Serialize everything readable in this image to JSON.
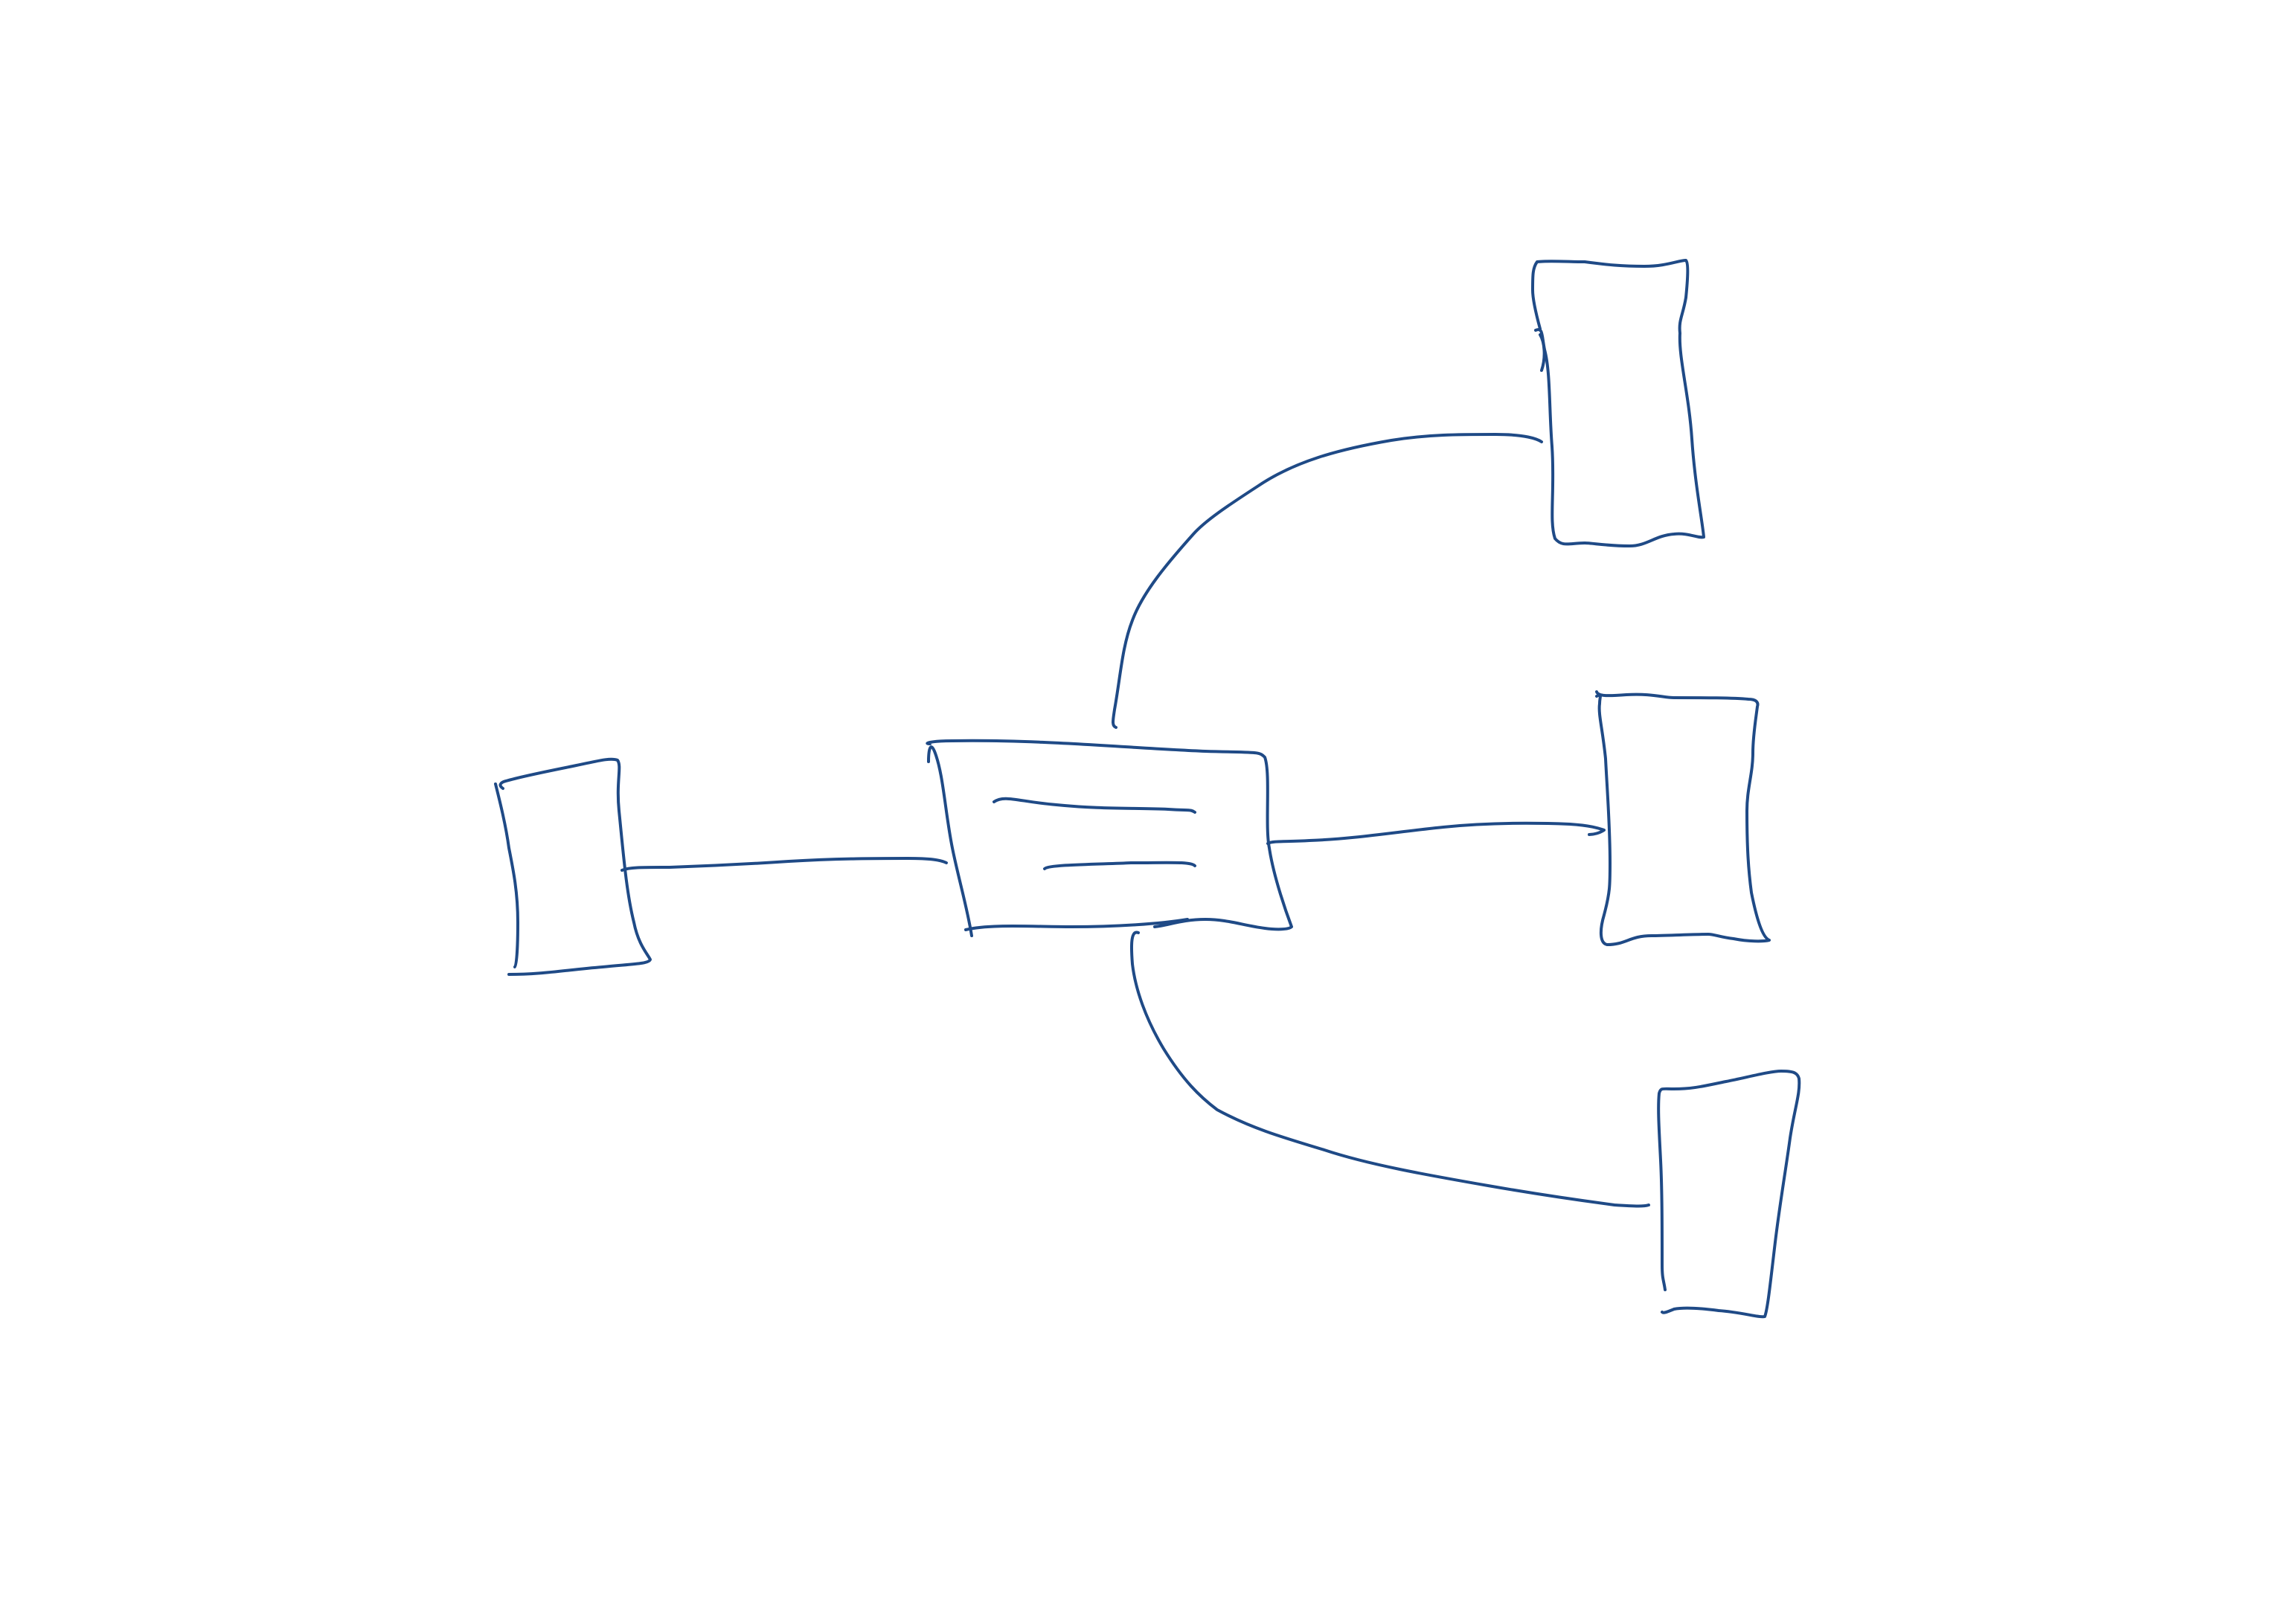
{
  "diagram": {
    "style": "hand-drawn sketch",
    "stroke_color": "#1f4a86",
    "background_color": "#ffffff",
    "nodes": [
      {
        "id": "center",
        "label": "",
        "has_inner_lines": true
      },
      {
        "id": "left",
        "label": ""
      },
      {
        "id": "top-right",
        "label": ""
      },
      {
        "id": "middle-right",
        "label": ""
      },
      {
        "id": "bottom-right",
        "label": ""
      }
    ],
    "edges": [
      {
        "from": "center",
        "to": "left"
      },
      {
        "from": "center",
        "to": "top-right"
      },
      {
        "from": "center",
        "to": "middle-right"
      },
      {
        "from": "center",
        "to": "bottom-right"
      }
    ]
  }
}
